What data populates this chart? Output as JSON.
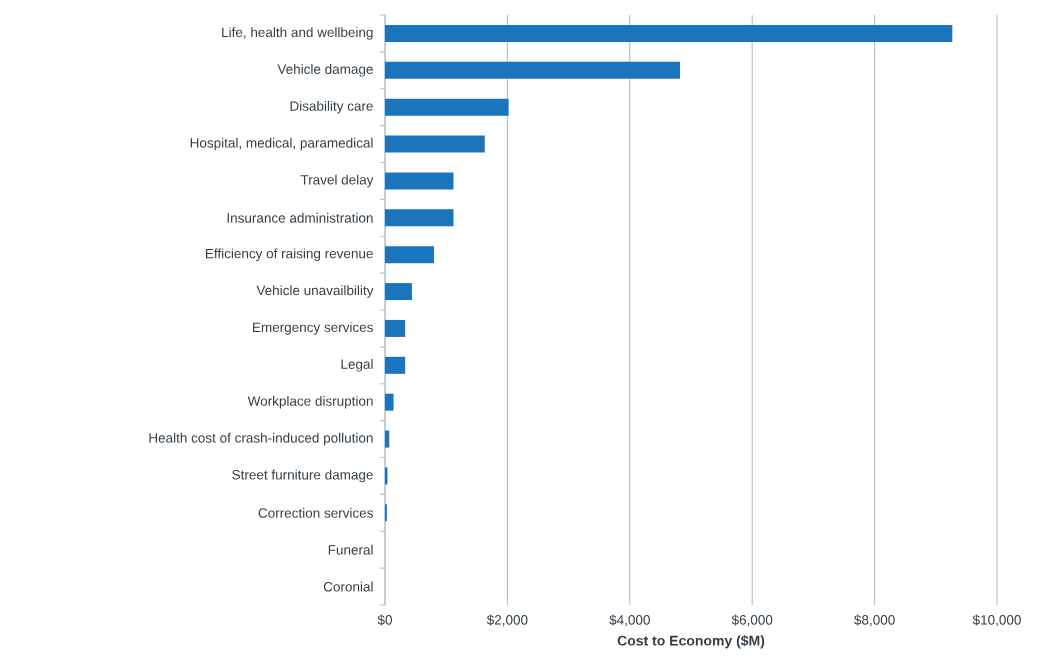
{
  "chart_data": {
    "type": "bar",
    "orientation": "horizontal",
    "xlabel": "Cost to Economy ($M)",
    "categories": [
      "Life, health and wellbeing",
      "Vehicle damage",
      "Disability care",
      "Hospital, medical, paramedical",
      "Travel delay",
      "Insurance administration",
      "Efficiency of raising revenue",
      "Vehicle unavailbility",
      "Emergency services",
      "Legal",
      "Workplace disruption",
      "Health cost of crash-induced pollution",
      "Street furniture damage",
      "Correction services",
      "Funeral",
      "Coronial"
    ],
    "values": [
      9270,
      4820,
      2020,
      1630,
      1120,
      1120,
      800,
      440,
      330,
      330,
      140,
      70,
      40,
      30,
      0,
      0
    ],
    "color": "#1b75bc",
    "xlim": [
      0,
      10000
    ],
    "xticks": [
      {
        "value": 0,
        "label": "$0"
      },
      {
        "value": 2000,
        "label": "$2,000"
      },
      {
        "value": 4000,
        "label": "$4,000"
      },
      {
        "value": 6000,
        "label": "$6,000"
      },
      {
        "value": 8000,
        "label": "$8,000"
      },
      {
        "value": 10000,
        "label": "$10,000"
      }
    ],
    "grid": "x"
  }
}
